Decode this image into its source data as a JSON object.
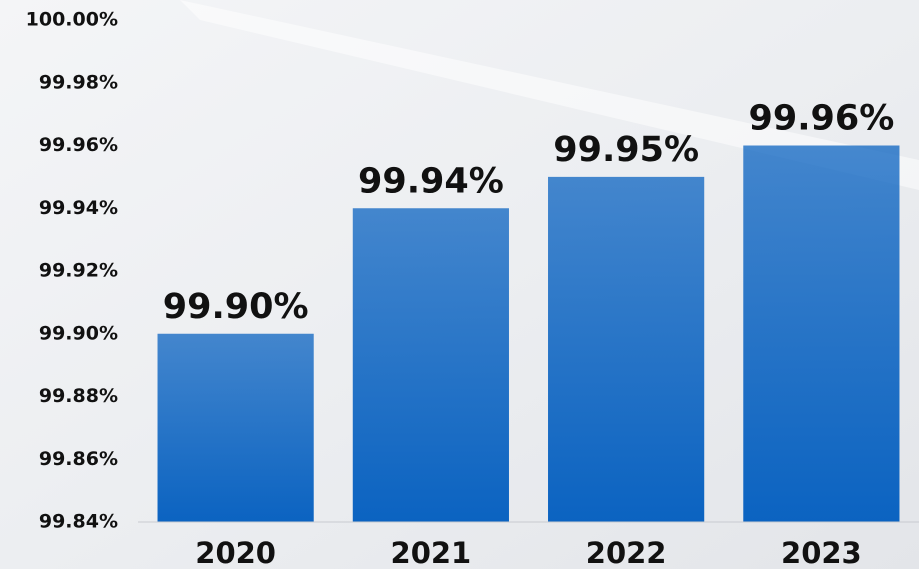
{
  "chart_data": {
    "type": "bar",
    "categories": [
      "2020",
      "2021",
      "2022",
      "2023"
    ],
    "values": [
      99.9,
      99.94,
      99.95,
      99.96
    ],
    "value_labels": [
      "99.90%",
      "99.94%",
      "99.95%",
      "99.96%"
    ],
    "color": "#0b63c1",
    "ylim": [
      99.84,
      100.0
    ],
    "yticks": [
      {
        "value": 99.84,
        "label": "99.84%"
      },
      {
        "value": 99.86,
        "label": "99.86%"
      },
      {
        "value": 99.88,
        "label": "99.88%"
      },
      {
        "value": 99.9,
        "label": "99.90%"
      },
      {
        "value": 99.92,
        "label": "99.92%"
      },
      {
        "value": 99.94,
        "label": "99.94%"
      },
      {
        "value": 99.96,
        "label": "99.96%"
      },
      {
        "value": 99.98,
        "label": "99.98%"
      },
      {
        "value": 100.0,
        "label": "100.00%"
      }
    ],
    "grid": false
  }
}
